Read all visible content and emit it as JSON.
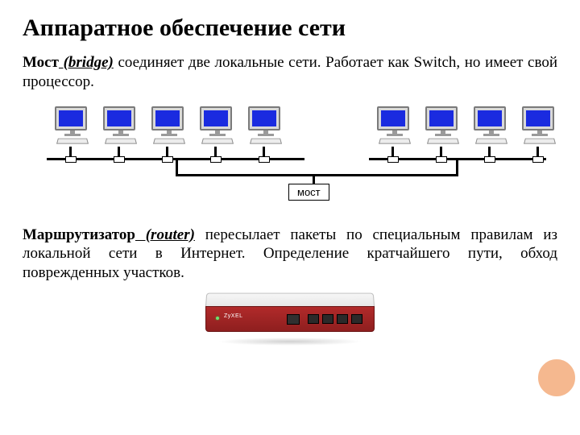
{
  "title": "Аппаратное обеспечение сети",
  "para1": {
    "b1": "Мост",
    "i1": " (bridge)",
    "rest1": " соединяет две локальные сети. Работает как Switch, но имеет свой процессор."
  },
  "diagram": {
    "bridge_label": "мост",
    "pc_positions_left": [
      40,
      100,
      160,
      220,
      280
    ],
    "pc_positions_right": [
      440,
      500,
      560,
      620
    ],
    "colors": {
      "screen": "#1a2be0",
      "bus": "#000000",
      "monitor_border": "#7a7a7a"
    }
  },
  "para2": {
    "b1": "Маршрутизатор",
    "i1": " (router)",
    "rest1": " пересылает пакеты по специальным правилам из локальной сети в Интернет. Определение кратчайшего пути, обход поврежденных участков."
  },
  "router": {
    "brand": "ZyXEL",
    "colors": {
      "front": "#b12a2a",
      "top": "#e8e8e8",
      "port": "#2a2a2a"
    }
  },
  "accent_circle_color": "#f4b183"
}
